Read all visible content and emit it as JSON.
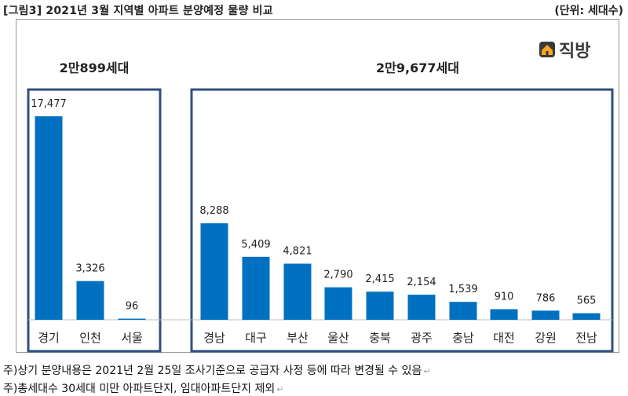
{
  "header": {
    "title": "[그림3] 2021년 3월 지역별 아파트 분양예정 물량 비교",
    "unit": "(단위: 세대수)"
  },
  "logo": {
    "text": "직방",
    "icon": "house-icon",
    "color": "#f5a623"
  },
  "groups": [
    {
      "label": "2만899세대"
    },
    {
      "label": "2만9,677세대"
    }
  ],
  "notes": [
    "주)상기 분양내용은 2021년 2월 25일 조사기준으로 공급자 사정 등에 따라 변경될 수 있음",
    "주)총세대수 30세대 미만 아파트단지, 임대아파트단지 제외"
  ],
  "colors": {
    "bar": "#0070c0",
    "group_box": "#2f4f7f"
  },
  "chart_data": {
    "type": "bar",
    "categories": [
      "경기",
      "인천",
      "서울",
      "경남",
      "대구",
      "부산",
      "울산",
      "충북",
      "광주",
      "충남",
      "대전",
      "강원",
      "전남"
    ],
    "values": [
      17477,
      3326,
      96,
      8288,
      5409,
      4821,
      2790,
      2415,
      2154,
      1539,
      910,
      786,
      565
    ],
    "value_labels": [
      "17,477",
      "3,326",
      "96",
      "8,288",
      "5,409",
      "4,821",
      "2,790",
      "2,415",
      "2,154",
      "1,539",
      "910",
      "786",
      "565"
    ],
    "ylim": [
      0,
      17477
    ],
    "grid": false,
    "legend": "none"
  }
}
